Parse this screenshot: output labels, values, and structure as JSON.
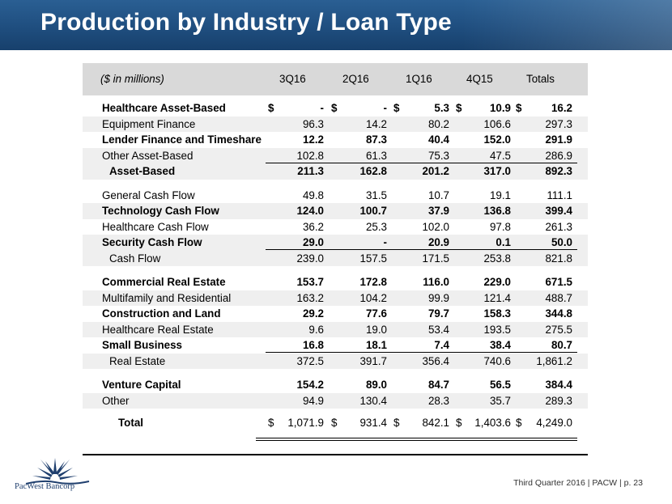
{
  "title": "Production by Industry / Loan Type",
  "header": {
    "caption": "($ in millions)",
    "columns": [
      "3Q16",
      "2Q16",
      "1Q16",
      "4Q15",
      "Totals"
    ]
  },
  "rows": [
    {
      "label": "Healthcare Asset-Based",
      "values": [
        "-",
        "-",
        "5.3",
        "10.9",
        "16.2"
      ],
      "bold": true,
      "dollar": true
    },
    {
      "label": "Equipment Finance",
      "values": [
        "96.3",
        "14.2",
        "80.2",
        "106.6",
        "297.3"
      ]
    },
    {
      "label": "Lender Finance and Timeshare",
      "values": [
        "12.2",
        "87.3",
        "40.4",
        "152.0",
        "291.9"
      ],
      "bold": true
    },
    {
      "label": "Other Asset-Based",
      "values": [
        "102.8",
        "61.3",
        "75.3",
        "47.5",
        "286.9"
      ]
    },
    {
      "label": "Asset-Based",
      "values": [
        "211.3",
        "162.8",
        "201.2",
        "317.0",
        "892.3"
      ],
      "bold": true,
      "subtotal": true
    },
    {
      "label": "General Cash Flow",
      "values": [
        "49.8",
        "31.5",
        "10.7",
        "19.1",
        "111.1"
      ],
      "gap": true
    },
    {
      "label": "Technology Cash Flow",
      "values": [
        "124.0",
        "100.7",
        "37.9",
        "136.8",
        "399.4"
      ],
      "bold": true
    },
    {
      "label": "Healthcare Cash Flow",
      "values": [
        "36.2",
        "25.3",
        "102.0",
        "97.8",
        "261.3"
      ]
    },
    {
      "label": "Security Cash Flow",
      "values": [
        "29.0",
        "-",
        "20.9",
        "0.1",
        "50.0"
      ],
      "bold": true
    },
    {
      "label": "Cash Flow",
      "values": [
        "239.0",
        "157.5",
        "171.5",
        "253.8",
        "821.8"
      ],
      "subtotal": true
    },
    {
      "label": "Commercial Real Estate",
      "values": [
        "153.7",
        "172.8",
        "116.0",
        "229.0",
        "671.5"
      ],
      "bold": true,
      "gap": true
    },
    {
      "label": "Multifamily and Residential",
      "values": [
        "163.2",
        "104.2",
        "99.9",
        "121.4",
        "488.7"
      ]
    },
    {
      "label": "Construction and Land",
      "values": [
        "29.2",
        "77.6",
        "79.7",
        "158.3",
        "344.8"
      ],
      "bold": true
    },
    {
      "label": "Healthcare Real Estate",
      "values": [
        "9.6",
        "19.0",
        "53.4",
        "193.5",
        "275.5"
      ]
    },
    {
      "label": "Small Business",
      "values": [
        "16.8",
        "18.1",
        "7.4",
        "38.4",
        "80.7"
      ],
      "bold": true
    },
    {
      "label": "Real Estate",
      "values": [
        "372.5",
        "391.7",
        "356.4",
        "740.6",
        "1,861.2"
      ],
      "subtotal": true
    },
    {
      "label": "Venture Capital",
      "values": [
        "154.2",
        "89.0",
        "84.7",
        "56.5",
        "384.4"
      ],
      "bold": true,
      "gap": true
    },
    {
      "label": "Other",
      "values": [
        "94.9",
        "130.4",
        "28.3",
        "35.7",
        "289.3"
      ]
    }
  ],
  "total": {
    "label": "Total",
    "values": [
      "1,071.9",
      "931.4",
      "842.1",
      "1,403.6",
      "4,249.0"
    ]
  },
  "currency_symbol": "$",
  "logo_text": "PacWest Bancorp",
  "footer": "Third Quarter 2016 | PACW | p. 23",
  "colors": {
    "title_bar": "#1f4e7f",
    "header_fill": "#d9d9d9",
    "row_shade": "#efefef"
  }
}
